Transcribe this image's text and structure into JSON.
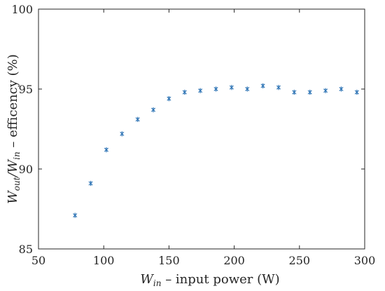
{
  "chart_data": {
    "type": "scatter",
    "title": "",
    "xlabel_main": "W",
    "xlabel_sub": "in",
    "xlabel_rest": " – input power (W)",
    "ylabel_w1": "W",
    "ylabel_sub1": "out",
    "ylabel_slash": "/",
    "ylabel_w2": "W",
    "ylabel_sub2": "in",
    "ylabel_rest": " – efficency (%)",
    "xlim": [
      50,
      300
    ],
    "ylim": [
      85,
      100
    ],
    "xticks": [
      "50",
      "100",
      "150",
      "200",
      "250",
      "300"
    ],
    "yticks": [
      "85",
      "90",
      "95",
      "100"
    ],
    "grid": false,
    "marker": "asterisk",
    "marker_color": "#2e74b5",
    "series": [
      {
        "x": [
          78,
          90,
          102,
          114,
          126,
          138,
          150,
          162,
          174,
          186,
          198,
          210,
          222,
          234,
          246,
          258,
          270,
          282,
          294
        ],
        "y": [
          87.1,
          89.1,
          91.2,
          92.2,
          93.1,
          93.7,
          94.4,
          94.8,
          94.9,
          95.0,
          95.1,
          95.0,
          95.2,
          95.1,
          94.8,
          94.8,
          94.9,
          95.0,
          94.8
        ]
      }
    ]
  }
}
